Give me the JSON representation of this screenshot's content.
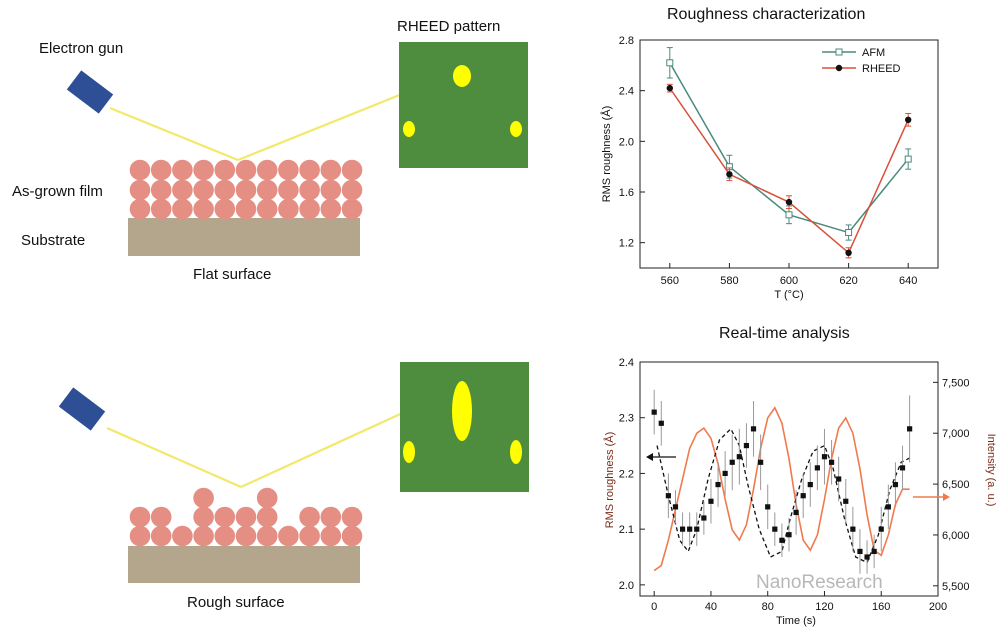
{
  "labels": {
    "electron_gun": "Electron gun",
    "rheed_pattern": "RHEED pattern",
    "as_grown_film": "As-grown film",
    "substrate": "Substrate",
    "flat_surface": "Flat surface",
    "rough_surface": "Rough surface"
  },
  "colors": {
    "gun": "#2e4f95",
    "beam": "#f2e86a",
    "film": "#e58f84",
    "substrate": "#b4a58d",
    "screen": "#4e8d3d",
    "spot": "#ffff00",
    "afm": "#4a8a7d",
    "rheed": "#d8503a",
    "intensity": "#f07a4e"
  },
  "watermark": "NanoResearch",
  "chart_data": [
    {
      "type": "line",
      "title": "Roughness  characterization",
      "xlabel": "T (°C)",
      "ylabel": "RMS roughness (Å)",
      "x": [
        560,
        580,
        600,
        620,
        640
      ],
      "xticks": [
        "560",
        "580",
        "600",
        "620",
        "640"
      ],
      "xlim": [
        550,
        650
      ],
      "ylim": [
        1.0,
        2.8
      ],
      "yticks": [
        "1.2",
        "1.6",
        "2.0",
        "2.4",
        "2.8"
      ],
      "legend_position": "top-right",
      "series": [
        {
          "name": "AFM",
          "values": [
            2.62,
            1.8,
            1.42,
            1.28,
            1.86
          ],
          "errors": [
            0.12,
            0.09,
            0.07,
            0.06,
            0.08
          ]
        },
        {
          "name": "RHEED",
          "values": [
            2.42,
            1.74,
            1.52,
            1.12,
            2.17
          ],
          "errors": [
            0.03,
            0.05,
            0.05,
            0.04,
            0.05
          ]
        }
      ]
    },
    {
      "type": "line",
      "title": "Real-time analysis",
      "xlabel": "Time (s)",
      "ylabel": "RMS roughness (Å)",
      "y2label": "Intensity (a. u.)",
      "xlim": [
        -10,
        200
      ],
      "xticks": [
        "0",
        "40",
        "80",
        "120",
        "160",
        "200"
      ],
      "ylim": [
        1.98,
        2.4
      ],
      "yticks": [
        "2.0",
        "2.1",
        "2.2",
        "2.3",
        "2.4"
      ],
      "y2lim": [
        5400,
        7700
      ],
      "y2ticks": [
        "5,500",
        "6,000",
        "6,500",
        "7,000",
        "7,500"
      ],
      "series": [
        {
          "name": "RMS roughness",
          "axis": "left",
          "x": [
            0,
            5,
            10,
            15,
            20,
            25,
            30,
            35,
            40,
            45,
            50,
            55,
            60,
            65,
            70,
            75,
            80,
            85,
            90,
            95,
            100,
            105,
            110,
            115,
            120,
            125,
            130,
            135,
            140,
            145,
            150,
            155,
            160,
            165,
            170,
            175,
            180
          ],
          "values": [
            2.31,
            2.29,
            2.16,
            2.14,
            2.1,
            2.1,
            2.1,
            2.12,
            2.15,
            2.18,
            2.2,
            2.22,
            2.23,
            2.25,
            2.28,
            2.22,
            2.14,
            2.1,
            2.08,
            2.09,
            2.13,
            2.16,
            2.18,
            2.21,
            2.23,
            2.22,
            2.19,
            2.15,
            2.1,
            2.06,
            2.05,
            2.06,
            2.1,
            2.14,
            2.18,
            2.21,
            2.28
          ],
          "errors": [
            0.04,
            0.04,
            0.04,
            0.03,
            0.03,
            0.03,
            0.03,
            0.03,
            0.04,
            0.04,
            0.04,
            0.05,
            0.05,
            0.04,
            0.05,
            0.05,
            0.04,
            0.03,
            0.03,
            0.03,
            0.04,
            0.04,
            0.04,
            0.04,
            0.05,
            0.04,
            0.04,
            0.04,
            0.04,
            0.04,
            0.03,
            0.03,
            0.04,
            0.04,
            0.04,
            0.04,
            0.06
          ]
        },
        {
          "name": "RMS fit (dashed)",
          "axis": "left",
          "x": [
            2,
            10,
            18,
            24,
            30,
            38,
            46,
            54,
            60,
            66,
            74,
            82,
            90,
            96,
            104,
            112,
            120,
            126,
            134,
            142,
            150,
            158,
            166,
            174,
            182
          ],
          "values": [
            2.25,
            2.16,
            2.08,
            2.06,
            2.1,
            2.19,
            2.26,
            2.28,
            2.25,
            2.18,
            2.1,
            2.05,
            2.06,
            2.12,
            2.19,
            2.24,
            2.25,
            2.21,
            2.12,
            2.05,
            2.04,
            2.09,
            2.17,
            2.22,
            2.23
          ]
        },
        {
          "name": "Intensity",
          "axis": "right",
          "x": [
            0,
            5,
            10,
            15,
            20,
            25,
            30,
            35,
            40,
            45,
            50,
            55,
            60,
            65,
            70,
            75,
            80,
            85,
            90,
            95,
            100,
            105,
            110,
            115,
            120,
            125,
            130,
            135,
            140,
            145,
            150,
            155,
            160,
            165,
            170,
            175,
            180
          ],
          "values": [
            5650,
            5700,
            5950,
            6250,
            6550,
            6850,
            7000,
            7050,
            6950,
            6700,
            6350,
            6050,
            5950,
            6100,
            6450,
            6850,
            7150,
            7250,
            7100,
            6750,
            6300,
            5950,
            5850,
            6000,
            6350,
            6750,
            7050,
            7150,
            7000,
            6650,
            6200,
            5850,
            5800,
            6000,
            6300,
            6450,
            6450
          ]
        }
      ],
      "arrows": [
        "left-axis",
        "right-axis"
      ]
    }
  ]
}
